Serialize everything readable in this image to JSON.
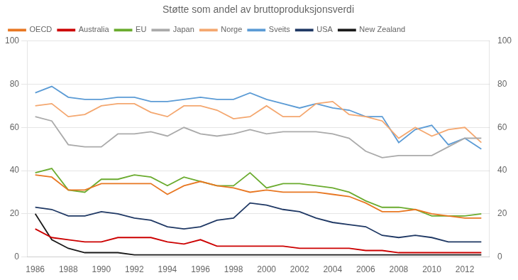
{
  "chart_data": {
    "type": "line",
    "title": "Støtte som andel av bruttoproduksjonsverdi",
    "x": [
      1986,
      1987,
      1988,
      1989,
      1990,
      1991,
      1992,
      1993,
      1994,
      1995,
      1996,
      1997,
      1998,
      1999,
      2000,
      2001,
      2002,
      2003,
      2004,
      2005,
      2006,
      2007,
      2008,
      2009,
      2010,
      2011,
      2012,
      2013
    ],
    "series": [
      {
        "name": "OECD",
        "color": "#E87722",
        "values": [
          38,
          37,
          31,
          31,
          34,
          34,
          34,
          34,
          29,
          33,
          35,
          33,
          32,
          30,
          31,
          30,
          30,
          30,
          29,
          28,
          25,
          21,
          21,
          22,
          20,
          19,
          18,
          18
        ]
      },
      {
        "name": "Australia",
        "color": "#CC0000",
        "values": [
          13,
          9,
          8,
          7,
          7,
          9,
          9,
          9,
          7,
          6,
          8,
          5,
          5,
          5,
          5,
          5,
          4,
          4,
          4,
          4,
          3,
          3,
          2,
          2,
          2,
          2,
          2,
          2
        ]
      },
      {
        "name": "EU",
        "color": "#6AAB2E",
        "values": [
          39,
          41,
          31,
          30,
          36,
          36,
          38,
          37,
          33,
          37,
          35,
          33,
          33,
          39,
          32,
          34,
          34,
          33,
          32,
          30,
          26,
          23,
          23,
          22,
          19,
          19,
          19,
          20
        ]
      },
      {
        "name": "Japan",
        "color": "#AAAAAA",
        "values": [
          65,
          63,
          52,
          51,
          51,
          57,
          57,
          58,
          56,
          60,
          57,
          56,
          57,
          59,
          57,
          58,
          58,
          58,
          57,
          55,
          49,
          46,
          47,
          47,
          47,
          51,
          55,
          55
        ]
      },
      {
        "name": "Norge",
        "color": "#F4A76F",
        "values": [
          70,
          71,
          65,
          66,
          70,
          71,
          71,
          67,
          65,
          70,
          70,
          68,
          64,
          65,
          70,
          65,
          65,
          71,
          72,
          66,
          65,
          63,
          55,
          60,
          56,
          59,
          60,
          53
        ]
      },
      {
        "name": "Sveits",
        "color": "#5B9BD5",
        "values": [
          76,
          79,
          74,
          73,
          73,
          74,
          74,
          72,
          72,
          73,
          74,
          73,
          73,
          76,
          73,
          71,
          69,
          71,
          69,
          68,
          65,
          65,
          53,
          59,
          61,
          52,
          55,
          50
        ]
      },
      {
        "name": "USA",
        "color": "#1F3864",
        "values": [
          23,
          22,
          19,
          19,
          21,
          20,
          18,
          17,
          14,
          13,
          14,
          17,
          18,
          25,
          24,
          22,
          21,
          18,
          16,
          15,
          14,
          10,
          9,
          10,
          9,
          7,
          7,
          7
        ]
      },
      {
        "name": "New Zealand",
        "color": "#1A1A1A",
        "values": [
          20,
          8,
          4,
          2,
          2,
          2,
          1,
          1,
          1,
          1,
          1,
          1,
          1,
          1,
          1,
          1,
          1,
          1,
          1,
          1,
          1,
          1,
          1,
          1,
          1,
          1,
          1,
          1
        ]
      }
    ],
    "xlim": [
      1985.5,
      2013.5
    ],
    "xticks": [
      1986,
      1988,
      1990,
      1992,
      1994,
      1996,
      1998,
      2000,
      2002,
      2004,
      2006,
      2008,
      2010,
      2012
    ],
    "ylim": [
      0,
      100
    ],
    "yticks": [
      0,
      20,
      40,
      60,
      80,
      100
    ],
    "y2lim": [
      0,
      100
    ],
    "y2ticks": [
      0,
      20,
      40,
      60,
      80,
      100
    ],
    "grid": "y",
    "legend": "upper left"
  }
}
